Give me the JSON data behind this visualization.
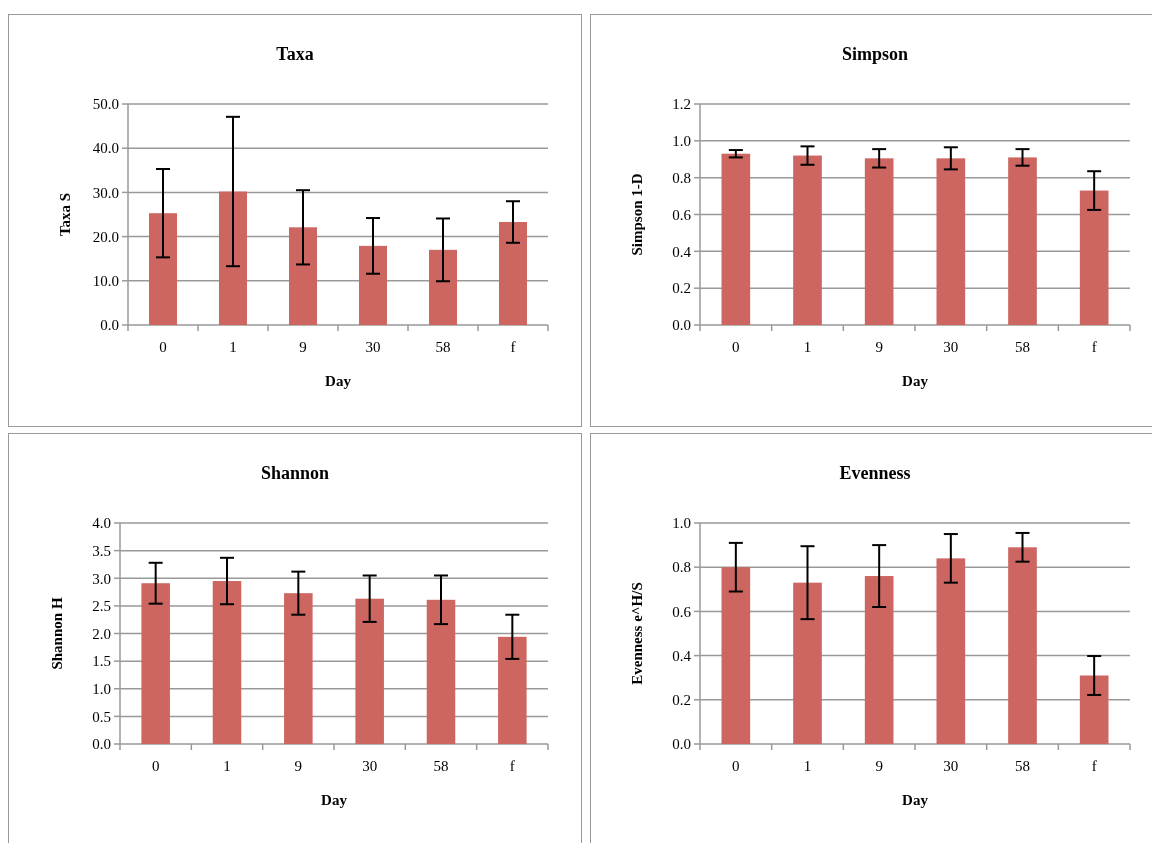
{
  "chart_data": [
    {
      "type": "bar",
      "title": "Taxa",
      "xlabel": "Day",
      "ylabel": "Taxa S",
      "categories": [
        "0",
        "1",
        "9",
        "30",
        "58",
        "f"
      ],
      "color": "#cd6660",
      "values": [
        25.3,
        30.2,
        22.1,
        17.9,
        17.0,
        23.3
      ],
      "errors": [
        10.0,
        16.9,
        8.4,
        6.3,
        7.1,
        4.7
      ],
      "ylim": [
        0,
        50
      ],
      "yticks": [
        {
          "value": 0,
          "label": "0.0"
        },
        {
          "value": 10,
          "label": "10.0"
        },
        {
          "value": 20,
          "label": "20.0"
        },
        {
          "value": 30,
          "label": "30.0"
        },
        {
          "value": 40,
          "label": "40.0"
        },
        {
          "value": 50,
          "label": "50.0"
        }
      ],
      "grid": "y"
    },
    {
      "type": "bar",
      "title": "Simpson",
      "xlabel": "Day",
      "ylabel": "Simpson 1-D",
      "categories": [
        "0",
        "1",
        "9",
        "30",
        "58",
        "f"
      ],
      "color": "#cd6660",
      "values": [
        0.93,
        0.92,
        0.905,
        0.905,
        0.91,
        0.73
      ],
      "errors": [
        0.02,
        0.05,
        0.05,
        0.06,
        0.045,
        0.105
      ],
      "ylim": [
        0,
        1.2
      ],
      "yticks": [
        {
          "value": 0,
          "label": "0.0"
        },
        {
          "value": 0.2,
          "label": "0.2"
        },
        {
          "value": 0.4,
          "label": "0.4"
        },
        {
          "value": 0.6,
          "label": "0.6"
        },
        {
          "value": 0.8,
          "label": "0.8"
        },
        {
          "value": 1,
          "label": "1.0"
        },
        {
          "value": 1.2,
          "label": "1.2"
        }
      ],
      "grid": "y"
    },
    {
      "type": "bar",
      "title": "Shannon",
      "xlabel": "Day",
      "ylabel": "Shannon H",
      "categories": [
        "0",
        "1",
        "9",
        "30",
        "58",
        "f"
      ],
      "color": "#cd6660",
      "values": [
        2.91,
        2.95,
        2.73,
        2.63,
        2.61,
        1.94
      ],
      "errors": [
        0.37,
        0.42,
        0.39,
        0.42,
        0.44,
        0.4
      ],
      "ylim": [
        0,
        4
      ],
      "yticks": [
        {
          "value": 0,
          "label": "0.0"
        },
        {
          "value": 0.5,
          "label": "0.5"
        },
        {
          "value": 1,
          "label": "1.0"
        },
        {
          "value": 1.5,
          "label": "1.5"
        },
        {
          "value": 2,
          "label": "2.0"
        },
        {
          "value": 2.5,
          "label": "2.5"
        },
        {
          "value": 3,
          "label": "3.0"
        },
        {
          "value": 3.5,
          "label": "3.5"
        },
        {
          "value": 4,
          "label": "4.0"
        }
      ],
      "grid": "y"
    },
    {
      "type": "bar",
      "title": "Evenness",
      "xlabel": "Day",
      "ylabel": "Evenness e^H/S",
      "categories": [
        "0",
        "1",
        "9",
        "30",
        "58",
        "f"
      ],
      "color": "#cd6660",
      "values": [
        0.8,
        0.73,
        0.76,
        0.84,
        0.89,
        0.31
      ],
      "errors": [
        0.11,
        0.165,
        0.14,
        0.11,
        0.065,
        0.088
      ],
      "ylim": [
        0,
        1
      ],
      "yticks": [
        {
          "value": 0,
          "label": "0.0"
        },
        {
          "value": 0.2,
          "label": "0.2"
        },
        {
          "value": 0.4,
          "label": "0.4"
        },
        {
          "value": 0.6,
          "label": "0.6"
        },
        {
          "value": 0.8,
          "label": "0.8"
        },
        {
          "value": 1,
          "label": "1.0"
        }
      ],
      "grid": "y"
    }
  ]
}
